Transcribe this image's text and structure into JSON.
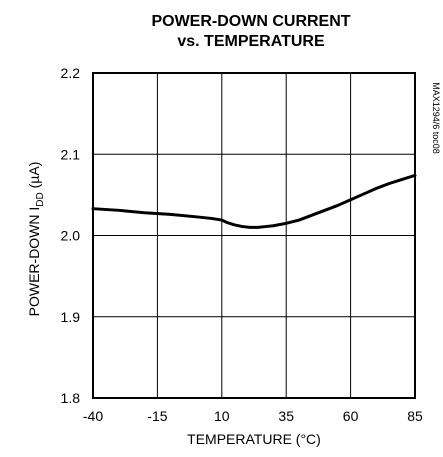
{
  "chart_data": {
    "type": "line",
    "title_lines": [
      "POWER-DOWN CURRENT",
      "vs. TEMPERATURE"
    ],
    "xlabel": "TEMPERATURE (°C)",
    "ylabel": {
      "prefix": "POWER-DOWN I",
      "subscript": "DD",
      "suffix": " (µA)"
    },
    "side_note": "MAX1294/6 toc08",
    "xlim": [
      -40,
      85
    ],
    "ylim": [
      1.8,
      2.2
    ],
    "x_ticks": [
      -40,
      -15,
      10,
      35,
      60,
      85
    ],
    "x_tick_labels": [
      "-40",
      "-15",
      "10",
      "35",
      "60",
      "85"
    ],
    "y_ticks": [
      1.8,
      1.9,
      2.0,
      2.1,
      2.2
    ],
    "y_tick_labels": [
      "1.8",
      "1.9",
      "2.0",
      "2.1",
      "2.2"
    ],
    "grid": true,
    "series": [
      {
        "x": [
          -40,
          -30,
          -20,
          -10,
          0,
          6,
          10,
          12,
          15,
          18,
          21,
          24,
          27,
          30,
          35,
          40,
          45,
          50,
          55,
          60,
          65,
          70,
          75,
          80,
          85
        ],
        "y": [
          2.033,
          2.031,
          2.028,
          2.026,
          2.023,
          2.021,
          2.019,
          2.016,
          2.013,
          2.011,
          2.01,
          2.01,
          2.011,
          2.012,
          2.015,
          2.019,
          2.025,
          2.031,
          2.037,
          2.044,
          2.051,
          2.058,
          2.064,
          2.069,
          2.074
        ]
      }
    ]
  }
}
